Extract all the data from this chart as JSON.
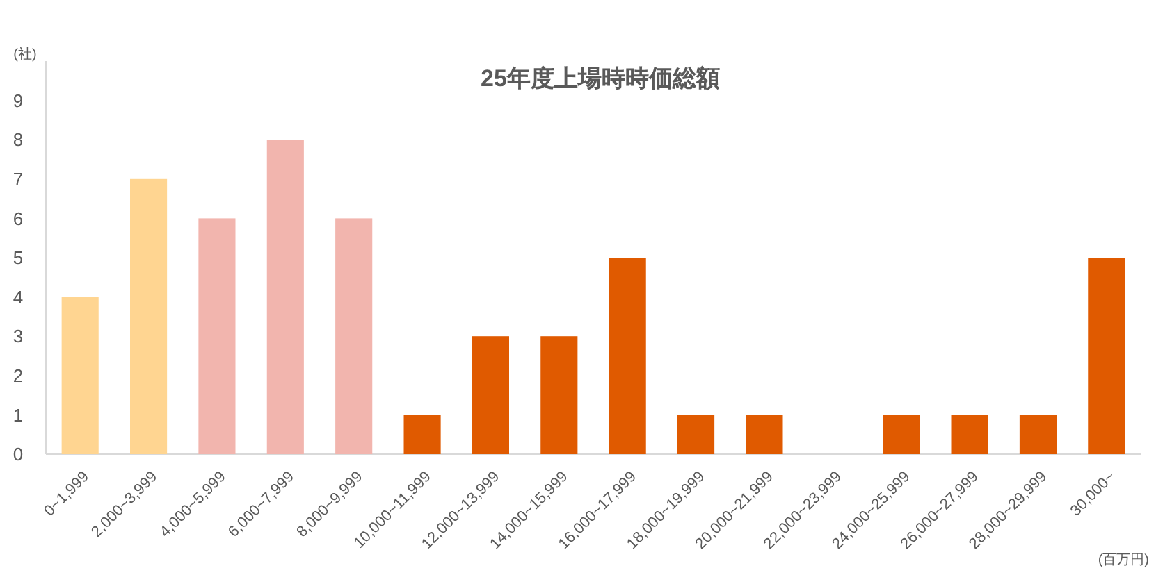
{
  "chart_data": {
    "type": "bar",
    "title": "25年度上場時時価総額",
    "xlabel": "(百万円)",
    "ylabel": "(社)",
    "categories": [
      "0~1,999",
      "2,000~3,999",
      "4,000~5,999",
      "6,000~7,999",
      "8,000~9,999",
      "10,000~11,999",
      "12,000~13,999",
      "14,000~15,999",
      "16,000~17,999",
      "18,000~19,999",
      "20,000~21,999",
      "22,000~23,999",
      "24,000~25,999",
      "26,000~27,999",
      "28,000~29,999",
      "30,000~"
    ],
    "values": [
      4,
      7,
      6,
      8,
      6,
      1,
      3,
      3,
      5,
      1,
      1,
      0,
      1,
      1,
      1,
      5
    ],
    "colors": [
      "#ffd591",
      "#ffd591",
      "#f2b5ae",
      "#f2b5ae",
      "#f2b5ae",
      "#e05a00",
      "#e05a00",
      "#e05a00",
      "#e05a00",
      "#e05a00",
      "#e05a00",
      "#e05a00",
      "#e05a00",
      "#e05a00",
      "#e05a00",
      "#e05a00"
    ],
    "ylim": [
      0,
      10
    ],
    "yticks": [
      0,
      1,
      2,
      3,
      4,
      5,
      6,
      7,
      8,
      9
    ]
  }
}
